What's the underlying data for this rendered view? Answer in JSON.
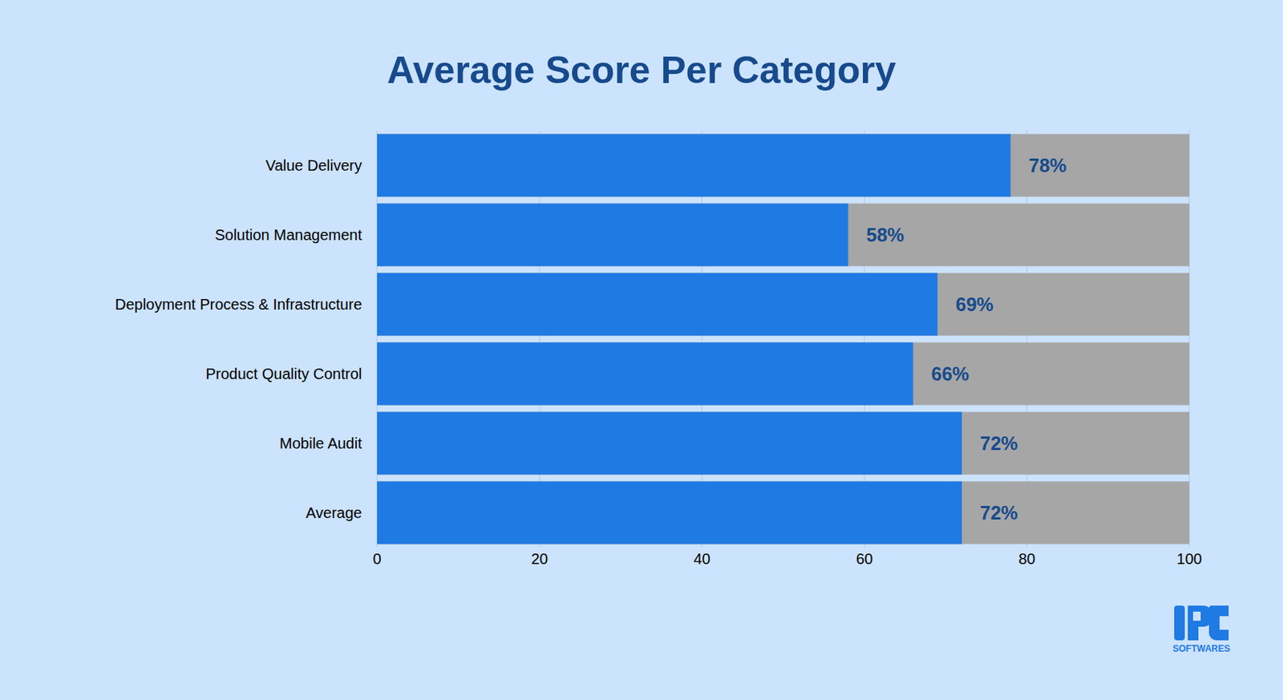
{
  "chart_data": {
    "type": "bar",
    "title": "Average Score Per Category",
    "orientation": "horizontal",
    "categories": [
      "Value Delivery",
      "Solution Management",
      "Deployment Process & Infrastructure",
      "Product Quality Control",
      "Mobile Audit",
      "Average"
    ],
    "values": [
      78,
      58,
      69,
      66,
      72,
      72
    ],
    "value_labels": [
      "78%",
      "58%",
      "69%",
      "66%",
      "72%",
      "72%"
    ],
    "data_labels": true,
    "color": "#1f7ae3",
    "xlim": [
      0,
      100
    ],
    "xticks": [
      0,
      20,
      40,
      60,
      80,
      100
    ],
    "grid": true,
    "annotations": [
      "SOFTWARES"
    ]
  }
}
